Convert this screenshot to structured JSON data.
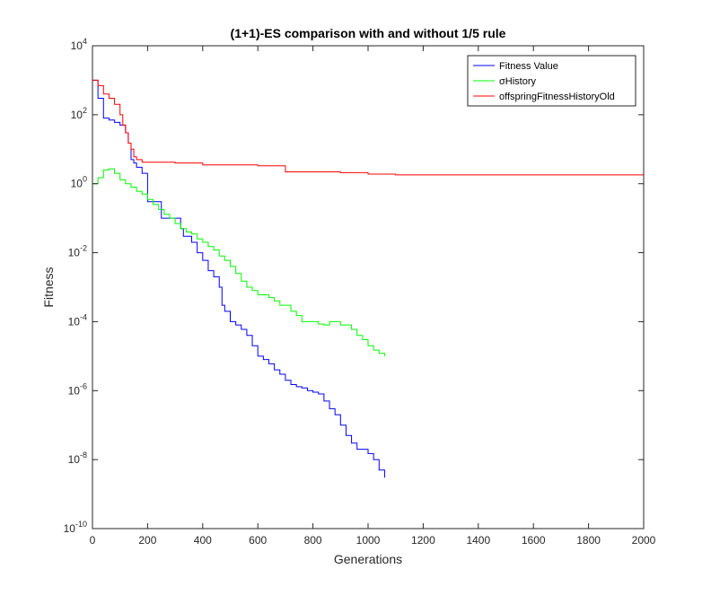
{
  "chart_data": {
    "type": "line",
    "title": "(1+1)-ES comparison with and without 1/5 rule",
    "xlabel": "Generations",
    "ylabel": "Fitness",
    "xlim": [
      0,
      2000
    ],
    "ylim": [
      1e-10,
      10000
    ],
    "yscale": "log",
    "grid": false,
    "legend_position": "top-right",
    "x_ticks": [
      "0",
      "200",
      "400",
      "600",
      "800",
      "1000",
      "1200",
      "1400",
      "1600",
      "1800",
      "2000"
    ],
    "y_ticks": [
      {
        "base": "10",
        "exp": "-10",
        "value": 1e-10
      },
      {
        "base": "10",
        "exp": "-8",
        "value": 1e-08
      },
      {
        "base": "10",
        "exp": "-6",
        "value": 1e-06
      },
      {
        "base": "10",
        "exp": "-4",
        "value": 0.0001
      },
      {
        "base": "10",
        "exp": "-2",
        "value": 0.01
      },
      {
        "base": "10",
        "exp": "0",
        "value": 1
      },
      {
        "base": "10",
        "exp": "2",
        "value": 100
      },
      {
        "base": "10",
        "exp": "4",
        "value": 10000
      }
    ],
    "series": [
      {
        "name": "Fitness Value",
        "color": "#0000ff",
        "x": [
          0,
          20,
          40,
          60,
          80,
          100,
          120,
          130,
          140,
          150,
          160,
          180,
          200,
          220,
          250,
          280,
          300,
          320,
          330,
          340,
          360,
          380,
          400,
          420,
          440,
          460,
          470,
          480,
          500,
          520,
          540,
          560,
          580,
          600,
          620,
          640,
          660,
          680,
          700,
          720,
          740,
          760,
          780,
          800,
          820,
          840,
          860,
          880,
          900,
          920,
          940,
          960,
          980,
          1000,
          1020,
          1040,
          1060
        ],
        "y": [
          1000,
          300,
          80,
          70,
          60,
          50,
          30,
          15,
          5,
          4,
          3,
          2,
          0.3,
          0.3,
          0.1,
          0.1,
          0.1,
          0.05,
          0.03,
          0.03,
          0.02,
          0.01,
          0.006,
          0.003,
          0.002,
          0.001,
          0.0003,
          0.0002,
          0.0001,
          8e-05,
          6e-05,
          4e-05,
          2e-05,
          1e-05,
          8e-06,
          6e-06,
          4e-06,
          3e-06,
          2e-06,
          1.5e-06,
          1.3e-06,
          1.2e-06,
          1e-06,
          9e-07,
          8e-07,
          5e-07,
          3e-07,
          2e-07,
          1e-07,
          5e-08,
          3e-08,
          2e-08,
          2e-08,
          1.5e-08,
          1e-08,
          5e-09,
          3e-09
        ]
      },
      {
        "name": "σHistory",
        "color": "#00ff00",
        "x": [
          0,
          20,
          40,
          60,
          80,
          100,
          120,
          140,
          160,
          180,
          200,
          220,
          240,
          260,
          280,
          300,
          320,
          340,
          360,
          380,
          400,
          420,
          440,
          460,
          480,
          500,
          520,
          540,
          560,
          580,
          600,
          620,
          640,
          660,
          680,
          700,
          720,
          740,
          760,
          780,
          800,
          820,
          840,
          860,
          880,
          900,
          920,
          940,
          960,
          980,
          1000,
          1020,
          1040,
          1060
        ],
        "y": [
          1,
          1.5,
          2.5,
          2.7,
          2,
          1.3,
          1,
          0.8,
          0.6,
          0.5,
          0.35,
          0.25,
          0.18,
          0.13,
          0.1,
          0.07,
          0.05,
          0.04,
          0.035,
          0.025,
          0.02,
          0.015,
          0.012,
          0.008,
          0.006,
          0.004,
          0.0025,
          0.0015,
          0.001,
          0.0008,
          0.0006,
          0.0006,
          0.0005,
          0.0004,
          0.0003,
          0.0003,
          0.0002,
          0.00015,
          0.0001,
          0.0001,
          0.0001,
          8.5e-05,
          8e-05,
          0.0001,
          0.0001,
          8e-05,
          8e-05,
          6e-05,
          4e-05,
          3e-05,
          2e-05,
          1.5e-05,
          1.2e-05,
          1e-05
        ]
      },
      {
        "name": "offspringFitnessHistoryOld",
        "color": "#ff0000",
        "x": [
          0,
          20,
          40,
          60,
          80,
          100,
          110,
          120,
          130,
          140,
          150,
          160,
          180,
          200,
          250,
          300,
          360,
          400,
          500,
          600,
          680,
          700,
          800,
          900,
          980,
          1000,
          1100,
          1200,
          1400,
          1600,
          1800,
          2000
        ],
        "y": [
          1000,
          700,
          400,
          300,
          200,
          100,
          50,
          30,
          15,
          10,
          6,
          5,
          4.2,
          4.2,
          4.2,
          4,
          4,
          3.5,
          3.5,
          3.3,
          3.3,
          2.2,
          2.2,
          2.1,
          2.1,
          1.9,
          1.8,
          1.8,
          1.8,
          1.8,
          1.8,
          1.8
        ]
      }
    ]
  }
}
